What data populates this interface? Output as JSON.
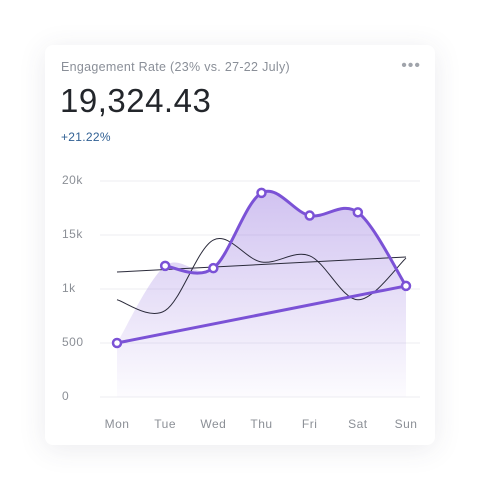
{
  "header": {
    "title": "Engagement Rate (23% vs. 27-22 July)",
    "value": "19,324.43",
    "change": "+21.22%"
  },
  "chart_data": {
    "type": "line",
    "categories": [
      "Mon",
      "Tue",
      "Wed",
      "Thu",
      "Fri",
      "Sat",
      "Sun"
    ],
    "series": [
      {
        "color": "#7b52d6",
        "values": [
          500,
          7000,
          6400,
          18900,
          16800,
          17100,
          1800
        ]
      },
      {
        "color": "#2a2a3a",
        "values": [
          900,
          800,
          13700,
          8000,
          9600,
          900,
          9000
        ]
      }
    ],
    "trend": {
      "color": "#2a2a3a",
      "values": [
        5400,
        9300
      ]
    },
    "yticks": [
      {
        "value": 20000,
        "label": "20k"
      },
      {
        "value": 15000,
        "label": "15k"
      },
      {
        "value": 1000,
        "label": "1k"
      },
      500,
      0
    ],
    "grid": true
  }
}
